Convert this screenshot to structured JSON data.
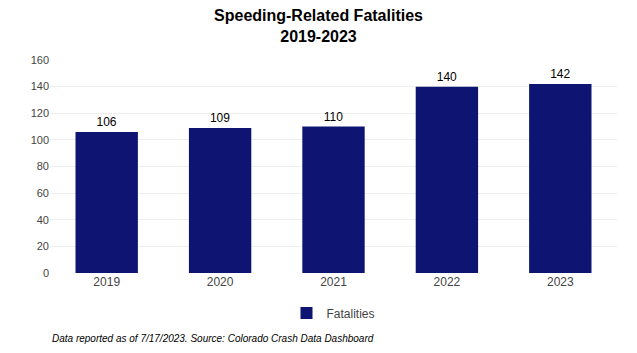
{
  "chart_data": {
    "type": "bar",
    "title": "Speeding-Related Fatalities",
    "subtitle": "2019-2023",
    "categories": [
      "2019",
      "2020",
      "2021",
      "2022",
      "2023"
    ],
    "series": [
      {
        "name": "Fatalities",
        "color": "#0d1472",
        "values": [
          106,
          109,
          110,
          140,
          142
        ]
      }
    ],
    "ylim": [
      0,
      160
    ],
    "yticks": [
      0,
      20,
      40,
      60,
      80,
      100,
      120,
      140,
      160
    ],
    "grid": true,
    "legend": "bottom",
    "data_labels": true,
    "annotations": [
      "Data reported as of 7/17/2023. Source: Colorado Crash Data Dashboard"
    ]
  }
}
